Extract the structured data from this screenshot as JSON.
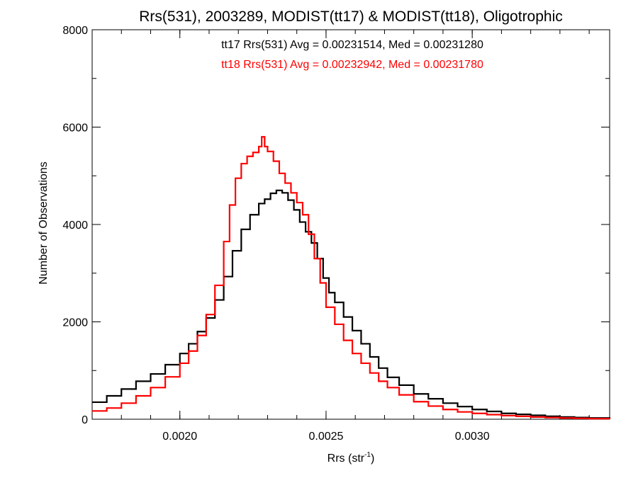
{
  "chart_data": {
    "type": "line",
    "title": "Rrs(531), 2003289, MODIST(tt17) & MODIST(tt18), Oligotrophic",
    "xlabel": "Rrs (str",
    "xlabel_sup": "-1",
    "xlabel_close": ")",
    "ylabel": "Number of Observations",
    "xlim": [
      0.0017,
      0.00347
    ],
    "ylim": [
      0,
      8000
    ],
    "xticks": [
      0.002,
      0.0025,
      0.003
    ],
    "xtick_labels": [
      "0.0020",
      "0.0025",
      "0.0030"
    ],
    "yticks": [
      0,
      2000,
      4000,
      6000,
      8000
    ],
    "ytick_labels": [
      "0",
      "2000",
      "4000",
      "6000",
      "8000"
    ],
    "grid": false,
    "annotations": [
      {
        "text": "tt17 Rrs(531) Avg = 0.00231514, Med = 0.00231280",
        "color": "#000000"
      },
      {
        "text": "tt18 Rrs(531) Avg = 0.00232942, Med = 0.00231780",
        "color": "#ff0000"
      }
    ],
    "series": [
      {
        "name": "tt17",
        "color": "#000000",
        "x": [
          0.0017,
          0.00175,
          0.0018,
          0.00185,
          0.0019,
          0.00195,
          0.002,
          0.00203,
          0.00206,
          0.00209,
          0.00212,
          0.00215,
          0.00218,
          0.00221,
          0.00224,
          0.00227,
          0.00229,
          0.00231,
          0.00233,
          0.00235,
          0.00237,
          0.00239,
          0.00241,
          0.00243,
          0.00245,
          0.00247,
          0.00249,
          0.00251,
          0.00253,
          0.00256,
          0.00259,
          0.00262,
          0.00265,
          0.00268,
          0.00271,
          0.00275,
          0.0028,
          0.00285,
          0.0029,
          0.00295,
          0.003,
          0.00305,
          0.0031,
          0.00315,
          0.0032,
          0.00325,
          0.0033,
          0.00335,
          0.0034,
          0.00347
        ],
        "y": [
          350,
          480,
          620,
          780,
          930,
          1120,
          1350,
          1550,
          1800,
          2080,
          2450,
          2930,
          3460,
          3900,
          4200,
          4430,
          4520,
          4640,
          4700,
          4650,
          4500,
          4300,
          4050,
          3850,
          3620,
          3300,
          2900,
          2600,
          2400,
          2100,
          1820,
          1550,
          1280,
          1050,
          860,
          700,
          520,
          420,
          330,
          260,
          200,
          160,
          120,
          100,
          80,
          60,
          45,
          35,
          25,
          15
        ]
      },
      {
        "name": "tt18",
        "color": "#ff0000",
        "x": [
          0.0017,
          0.00175,
          0.0018,
          0.00185,
          0.0019,
          0.00195,
          0.002,
          0.00203,
          0.00206,
          0.00209,
          0.00212,
          0.00215,
          0.00217,
          0.00219,
          0.00221,
          0.00223,
          0.00225,
          0.00227,
          0.00228,
          0.00229,
          0.0023,
          0.00232,
          0.00234,
          0.00236,
          0.00238,
          0.0024,
          0.00242,
          0.00244,
          0.00246,
          0.00248,
          0.0025,
          0.00253,
          0.00256,
          0.00259,
          0.00262,
          0.00265,
          0.00268,
          0.00271,
          0.00275,
          0.0028,
          0.00285,
          0.0029,
          0.00295,
          0.003,
          0.00305,
          0.0031,
          0.00315,
          0.0032,
          0.00325,
          0.0033,
          0.00335,
          0.0034,
          0.00347
        ],
        "y": [
          170,
          230,
          330,
          480,
          650,
          870,
          1150,
          1400,
          1720,
          2150,
          2750,
          3650,
          4400,
          4950,
          5250,
          5400,
          5480,
          5600,
          5800,
          5600,
          5500,
          5300,
          5050,
          4850,
          4650,
          4450,
          4200,
          3800,
          3300,
          2800,
          2300,
          1950,
          1620,
          1350,
          1150,
          950,
          780,
          650,
          500,
          360,
          270,
          200,
          150,
          120,
          95,
          75,
          60,
          45,
          35,
          25,
          18,
          12,
          8
        ]
      }
    ]
  }
}
